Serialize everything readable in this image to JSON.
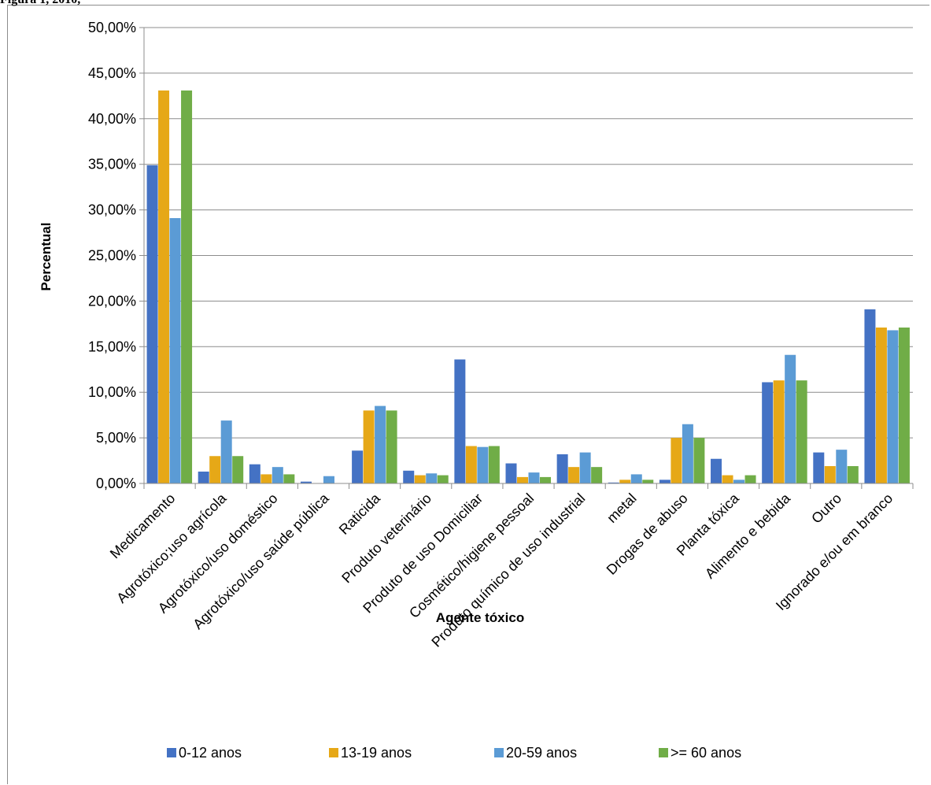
{
  "header_fragment": "Figura 1, 2010,",
  "chart_data": {
    "type": "bar",
    "xlabel": "Agente tóxico",
    "ylabel": "Percentual",
    "ylim": [
      0,
      50
    ],
    "y_ticks": [
      "0,00%",
      "5,00%",
      "10,00%",
      "15,00%",
      "20,00%",
      "25,00%",
      "30,00%",
      "35,00%",
      "40,00%",
      "45,00%",
      "50,00%"
    ],
    "y_tick_values": [
      0,
      5,
      10,
      15,
      20,
      25,
      30,
      35,
      40,
      45,
      50
    ],
    "grid": true,
    "legend_position": "bottom",
    "categories": [
      "Medicamento",
      "Agrotóxico;uso agrícola",
      "Agrotóxico/uso doméstico",
      "Agrotóxico/uso saúde pública",
      "Raticida",
      "Produto veterinário",
      "Produto de uso Domiciliar",
      "Cosmético/higiene pessoal",
      "Produto químico de uso industrial",
      "metal",
      "Drogas de abuso",
      "Planta tóxica",
      "Alimento e bebida",
      "Outro",
      "Ignorado e/ou em branco"
    ],
    "series": [
      {
        "name": "0-12 anos",
        "color": "#4472c4",
        "values": [
          34.9,
          1.3,
          2.1,
          0.2,
          3.6,
          1.4,
          13.6,
          2.2,
          3.2,
          0.1,
          0.4,
          2.7,
          11.1,
          3.4,
          19.1
        ]
      },
      {
        "name": "13-19 anos",
        "color": "#e6a817",
        "values": [
          43.1,
          3.0,
          1.0,
          0.0,
          8.0,
          0.9,
          4.1,
          0.7,
          1.8,
          0.4,
          5.0,
          0.9,
          11.3,
          1.9,
          17.1
        ]
      },
      {
        "name": "20-59 anos",
        "color": "#5b9bd5",
        "values": [
          29.1,
          6.9,
          1.8,
          0.8,
          8.5,
          1.1,
          4.0,
          1.2,
          3.4,
          1.0,
          6.5,
          0.4,
          14.1,
          3.7,
          16.8
        ]
      },
      {
        "name": ">= 60 anos",
        "color": "#70ad47",
        "values": [
          43.1,
          3.0,
          1.0,
          0.0,
          8.0,
          0.9,
          4.1,
          0.7,
          1.8,
          0.4,
          5.0,
          0.9,
          11.3,
          1.9,
          17.1
        ]
      }
    ]
  }
}
